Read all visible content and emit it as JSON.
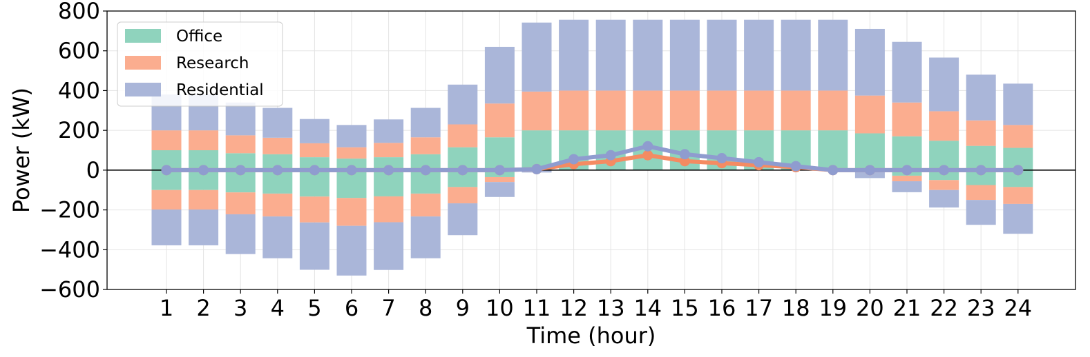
{
  "chart_data": {
    "type": "bar",
    "stacked": true,
    "xlabel": "Time (hour)",
    "ylabel": "Power (kW)",
    "ylim": [
      -600,
      800
    ],
    "yticks": [
      -600,
      -400,
      -200,
      0,
      200,
      400,
      600,
      800
    ],
    "ytick_labels": [
      "−600",
      "−400",
      "−200",
      "0",
      "200",
      "400",
      "600",
      "800"
    ],
    "categories": [
      "1",
      "2",
      "3",
      "4",
      "5",
      "6",
      "7",
      "8",
      "9",
      "10",
      "11",
      "12",
      "13",
      "14",
      "15",
      "16",
      "17",
      "18",
      "19",
      "20",
      "21",
      "22",
      "23",
      "24"
    ],
    "grid": true,
    "legend_position": "top-left",
    "colors": {
      "Office": "#8fd3bd",
      "Research": "#fbad8f",
      "Residential": "#aab6d9",
      "zero_line": "#000000",
      "line_office": "#f48b62",
      "line_residential": "#8f9ccf"
    },
    "series": [
      {
        "name": "Office",
        "positive": [
          100,
          100,
          85,
          80,
          65,
          58,
          65,
          80,
          115,
          165,
          200,
          200,
          200,
          200,
          200,
          200,
          200,
          200,
          200,
          185,
          170,
          148,
          122,
          112
        ],
        "negative": [
          -100,
          -100,
          -112,
          -118,
          -133,
          -140,
          -132,
          -118,
          -85,
          -35,
          0,
          0,
          0,
          0,
          0,
          0,
          0,
          0,
          0,
          0,
          -28,
          -50,
          -75,
          -85
        ]
      },
      {
        "name": "Research",
        "positive": [
          100,
          100,
          90,
          83,
          70,
          57,
          72,
          85,
          115,
          170,
          195,
          200,
          200,
          200,
          200,
          200,
          200,
          200,
          200,
          190,
          170,
          148,
          128,
          115
        ],
        "negative": [
          -98,
          -98,
          -110,
          -115,
          -130,
          -140,
          -130,
          -115,
          -82,
          -25,
          0,
          0,
          0,
          0,
          0,
          0,
          0,
          0,
          0,
          0,
          -28,
          -50,
          -75,
          -85
        ]
      },
      {
        "name": "Residential",
        "positive": [
          180,
          180,
          165,
          150,
          122,
          112,
          118,
          148,
          200,
          285,
          347,
          356,
          356,
          356,
          356,
          356,
          356,
          356,
          356,
          335,
          305,
          270,
          230,
          208
        ],
        "negative": [
          -180,
          -180,
          -200,
          -210,
          -238,
          -250,
          -240,
          -210,
          -160,
          -75,
          -12,
          0,
          0,
          0,
          0,
          0,
          0,
          0,
          0,
          -40,
          -55,
          -88,
          -125,
          -150
        ]
      }
    ],
    "lines": [
      {
        "name": "Research",
        "values": [
          0,
          0,
          0,
          0,
          0,
          0,
          0,
          0,
          0,
          0,
          5,
          30,
          45,
          75,
          45,
          35,
          25,
          15,
          0,
          0,
          0,
          0,
          0,
          0
        ]
      },
      {
        "name": "Residential",
        "values": [
          0,
          0,
          0,
          0,
          0,
          0,
          0,
          0,
          0,
          0,
          5,
          55,
          75,
          120,
          80,
          60,
          40,
          20,
          0,
          0,
          0,
          0,
          0,
          0
        ]
      }
    ]
  }
}
